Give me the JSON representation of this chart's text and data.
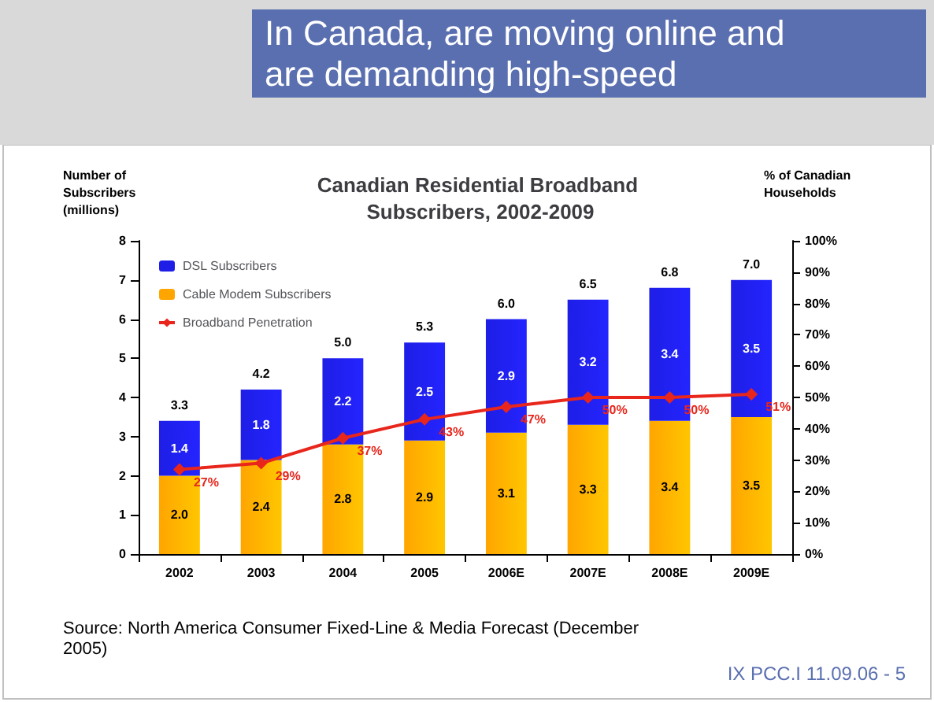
{
  "chart_data": {
    "type": "bar",
    "title": "Canadian Residential Broadband Subscribers, 2002-2009",
    "ylabel": "Number of Subscribers (millions)",
    "y2label": "% of Canadian Households",
    "annotations": [
      "In Canada, are moving online and are demanding high-speed",
      "Source: North America Consumer Fixed-Line & Media Forecast (December 2005)",
      "IX PCC.I 11.09.06 - 5"
    ],
    "categories": [
      "2002",
      "2003",
      "2004",
      "2005",
      "2006E",
      "2007E",
      "2008E",
      "2009E"
    ],
    "stacked": true,
    "legend": "top left",
    "grid": false,
    "series": [
      {
        "name": "Cable Modem Subscribers",
        "color": "#ffa500",
        "values": [
          2.0,
          2.4,
          2.8,
          2.9,
          3.1,
          3.3,
          3.4,
          3.5
        ],
        "value_labels": [
          "2.0",
          "2.4",
          "2.8",
          "2.9",
          "3.1",
          "3.3",
          "3.4",
          "3.5"
        ]
      },
      {
        "name": "DSL Subscribers",
        "color": "#1e1ee6",
        "values": [
          1.4,
          1.8,
          2.2,
          2.5,
          2.9,
          3.2,
          3.4,
          3.5
        ],
        "value_labels": [
          "1.4",
          "1.8",
          "2.2",
          "2.5",
          "2.9",
          "3.2",
          "3.4",
          "3.5"
        ]
      },
      {
        "name": "Broadband Penetration",
        "type": "line",
        "axis": "y2",
        "color": "#e8261c",
        "marker": "diamond",
        "line_style": "solid",
        "values": [
          27,
          29,
          37,
          43,
          47,
          50,
          50,
          51
        ],
        "value_labels": [
          "27%",
          "29%",
          "37%",
          "43%",
          "47%",
          "50%",
          "50%",
          "51%"
        ]
      }
    ],
    "totals": [
      "3.3",
      "4.2",
      "5.0",
      "5.3",
      "6.0",
      "6.5",
      "6.8",
      "7.0"
    ],
    "ylim": [
      0,
      8
    ],
    "yticks": [
      0,
      1,
      2,
      3,
      4,
      5,
      6,
      7,
      8
    ],
    "y2lim": [
      0,
      100
    ],
    "y2ticks": [
      {
        "value": 0,
        "label": "0%"
      },
      {
        "value": 10,
        "label": "10%"
      },
      {
        "value": 20,
        "label": "20%"
      },
      {
        "value": 30,
        "label": "30%"
      },
      {
        "value": 40,
        "label": "40%"
      },
      {
        "value": 50,
        "label": "50%"
      },
      {
        "value": 60,
        "label": "60%"
      },
      {
        "value": 70,
        "label": "70%"
      },
      {
        "value": 80,
        "label": "80%"
      },
      {
        "value": 90,
        "label": "90%"
      },
      {
        "value": 100,
        "label": "100%"
      }
    ]
  }
}
